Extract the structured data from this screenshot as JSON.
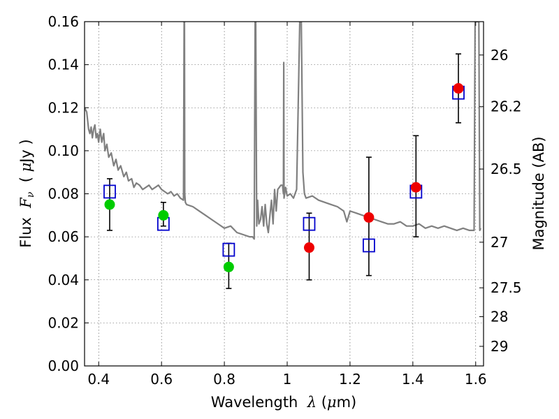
{
  "chart_data": {
    "type": "scatter",
    "title": "",
    "xlabel": {
      "prefix": "Wavelength  ",
      "symbol": "λ",
      "suffix": " (",
      "mu": "μ",
      "unit": "m)"
    },
    "ylabel": {
      "prefix": "Flux  ",
      "symbol": "F",
      "subscript": "ν",
      "suffix": "  ( ",
      "mu": "μ",
      "unit": "Jy )"
    },
    "y2label": "Magnitude (AB)",
    "xlim": [
      0.355,
      1.625
    ],
    "ylim": [
      0.0,
      0.16
    ],
    "grid": true,
    "x_ticks": [
      {
        "value": 0.4,
        "label": "0.4"
      },
      {
        "value": 0.6,
        "label": "0.6"
      },
      {
        "value": 0.8,
        "label": "0.8"
      },
      {
        "value": 1.0,
        "label": "1"
      },
      {
        "value": 1.2,
        "label": "1.2"
      },
      {
        "value": 1.4,
        "label": "1.4"
      },
      {
        "value": 1.6,
        "label": "1.6"
      }
    ],
    "y_ticks": [
      {
        "value": 0.0,
        "label": "0.00"
      },
      {
        "value": 0.02,
        "label": "0.02"
      },
      {
        "value": 0.04,
        "label": "0.04"
      },
      {
        "value": 0.06,
        "label": "0.06"
      },
      {
        "value": 0.08,
        "label": "0.08"
      },
      {
        "value": 0.1,
        "label": "0.10"
      },
      {
        "value": 0.12,
        "label": "0.12"
      },
      {
        "value": 0.14,
        "label": "0.14"
      },
      {
        "value": 0.16,
        "label": "0.16"
      }
    ],
    "y2_ticks": [
      {
        "flux": 0.1445,
        "label": "26"
      },
      {
        "flux": 0.1205,
        "label": "26.2"
      },
      {
        "flux": 0.0915,
        "label": "26.5"
      },
      {
        "flux": 0.0575,
        "label": "27"
      },
      {
        "flux": 0.0363,
        "label": "27.5"
      },
      {
        "flux": 0.0229,
        "label": "28"
      },
      {
        "flux": 0.0091,
        "label": "29"
      }
    ],
    "colors": {
      "model": "#808080",
      "model_points": "#0000cc",
      "obs_optical": "#00cc00",
      "obs_nir": "#ee0000",
      "errorbar": "#000000"
    },
    "model_photometry": [
      {
        "x": 0.435,
        "y": 0.081
      },
      {
        "x": 0.606,
        "y": 0.066
      },
      {
        "x": 0.814,
        "y": 0.054
      },
      {
        "x": 1.07,
        "y": 0.066
      },
      {
        "x": 1.26,
        "y": 0.056
      },
      {
        "x": 1.41,
        "y": 0.081
      },
      {
        "x": 1.545,
        "y": 0.127
      }
    ],
    "observed_optical": [
      {
        "x": 0.435,
        "y": 0.075,
        "ylo": 0.063,
        "yhi": 0.087
      },
      {
        "x": 0.606,
        "y": 0.07,
        "ylo": 0.065,
        "yhi": 0.076
      },
      {
        "x": 0.814,
        "y": 0.046,
        "ylo": 0.036,
        "yhi": 0.057
      }
    ],
    "observed_nir": [
      {
        "x": 1.07,
        "y": 0.055,
        "ylo": 0.04,
        "yhi": 0.071
      },
      {
        "x": 1.26,
        "y": 0.069,
        "ylo": 0.042,
        "yhi": 0.097
      },
      {
        "x": 1.41,
        "y": 0.083,
        "ylo": 0.06,
        "yhi": 0.107
      },
      {
        "x": 1.545,
        "y": 0.129,
        "ylo": 0.113,
        "yhi": 0.145
      }
    ],
    "model_spectrum": {
      "x": [
        0.355,
        0.362,
        0.368,
        0.372,
        0.376,
        0.38,
        0.384,
        0.388,
        0.392,
        0.396,
        0.4,
        0.405,
        0.41,
        0.416,
        0.42,
        0.426,
        0.432,
        0.44,
        0.448,
        0.455,
        0.462,
        0.47,
        0.48,
        0.488,
        0.495,
        0.505,
        0.512,
        0.52,
        0.53,
        0.54,
        0.55,
        0.56,
        0.57,
        0.58,
        0.59,
        0.6,
        0.61,
        0.62,
        0.63,
        0.64,
        0.65,
        0.66,
        0.67,
        0.672,
        0.673,
        0.674,
        0.676,
        0.68,
        0.7,
        0.72,
        0.74,
        0.76,
        0.78,
        0.8,
        0.82,
        0.84,
        0.86,
        0.88,
        0.89,
        0.895,
        0.898,
        0.9,
        0.903,
        0.906,
        0.91,
        0.915,
        0.92,
        0.925,
        0.93,
        0.935,
        0.94,
        0.945,
        0.95,
        0.955,
        0.96,
        0.965,
        0.97,
        0.98,
        0.985,
        0.988,
        0.989,
        0.99,
        0.992,
        0.995,
        1.0,
        1.01,
        1.02,
        1.03,
        1.035,
        1.04,
        1.045,
        1.05,
        1.055,
        1.06,
        1.08,
        1.1,
        1.12,
        1.14,
        1.16,
        1.18,
        1.19,
        1.2,
        1.22,
        1.24,
        1.26,
        1.28,
        1.3,
        1.32,
        1.34,
        1.36,
        1.38,
        1.4,
        1.42,
        1.44,
        1.46,
        1.48,
        1.5,
        1.52,
        1.54,
        1.56,
        1.58,
        1.595,
        1.598,
        1.6,
        1.605,
        1.61,
        1.613,
        1.616
      ],
      "y": [
        0.12,
        0.118,
        0.11,
        0.108,
        0.111,
        0.106,
        0.11,
        0.112,
        0.106,
        0.108,
        0.104,
        0.11,
        0.104,
        0.108,
        0.1,
        0.103,
        0.097,
        0.099,
        0.093,
        0.096,
        0.091,
        0.093,
        0.088,
        0.09,
        0.086,
        0.087,
        0.083,
        0.085,
        0.084,
        0.082,
        0.083,
        0.084,
        0.082,
        0.083,
        0.084,
        0.082,
        0.081,
        0.08,
        0.081,
        0.079,
        0.08,
        0.078,
        0.077,
        0.16,
        0.16,
        0.08,
        0.076,
        0.075,
        0.074,
        0.072,
        0.07,
        0.068,
        0.066,
        0.064,
        0.065,
        0.062,
        0.061,
        0.06,
        0.06,
        0.059,
        0.16,
        0.16,
        0.065,
        0.077,
        0.066,
        0.068,
        0.074,
        0.065,
        0.075,
        0.066,
        0.062,
        0.07,
        0.077,
        0.066,
        0.082,
        0.072,
        0.082,
        0.084,
        0.084,
        0.08,
        0.141,
        0.078,
        0.08,
        0.083,
        0.079,
        0.08,
        0.078,
        0.082,
        0.12,
        0.16,
        0.16,
        0.09,
        0.08,
        0.078,
        0.079,
        0.077,
        0.076,
        0.075,
        0.074,
        0.072,
        0.067,
        0.072,
        0.071,
        0.07,
        0.069,
        0.068,
        0.067,
        0.066,
        0.066,
        0.067,
        0.065,
        0.065,
        0.066,
        0.064,
        0.065,
        0.064,
        0.065,
        0.064,
        0.063,
        0.064,
        0.063,
        0.063,
        0.16,
        0.16,
        0.16,
        0.16,
        0.063,
        0.064
      ]
    }
  }
}
